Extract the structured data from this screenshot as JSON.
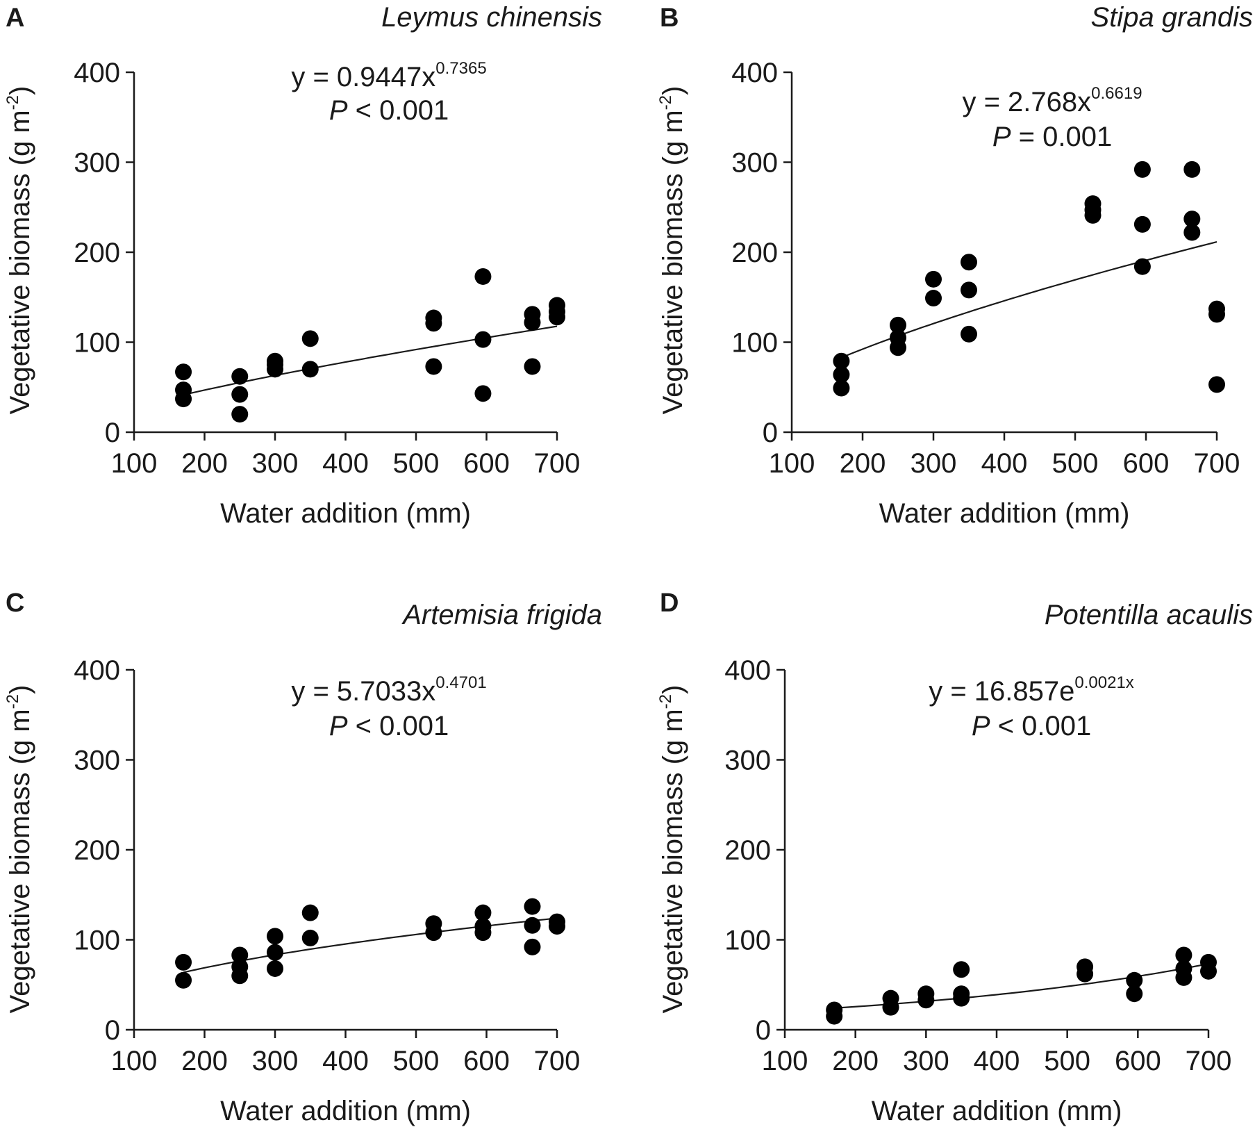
{
  "chart_data": [
    {
      "type": "scatter",
      "panel_label": "A",
      "title": "Leymus chinensis",
      "equation": {
        "prefix": "y = 0.9447x",
        "superscript": "0.7365",
        "p_symbol": "P",
        "p_text": " < 0.001"
      },
      "fit": {
        "form": "power",
        "a": 0.9447,
        "b": 0.7365
      },
      "xlabel": "Water addition (mm)",
      "ylabel": "Vegetative biomass (g m",
      "ylabel_sup": "-2",
      "ylabel_close": ")",
      "xlim": [
        100,
        700
      ],
      "ylim": [
        0,
        400
      ],
      "xticks": [
        "100",
        "200",
        "300",
        "400",
        "500",
        "600",
        "700"
      ],
      "yticks": [
        "0",
        "100",
        "200",
        "300",
        "400"
      ],
      "points": [
        [
          170,
          67
        ],
        [
          170,
          47
        ],
        [
          170,
          37
        ],
        [
          250,
          62
        ],
        [
          250,
          42
        ],
        [
          250,
          20
        ],
        [
          300,
          79
        ],
        [
          300,
          75
        ],
        [
          300,
          70
        ],
        [
          350,
          104
        ],
        [
          350,
          70
        ],
        [
          525,
          127
        ],
        [
          525,
          121
        ],
        [
          525,
          73
        ],
        [
          595,
          173
        ],
        [
          595,
          103
        ],
        [
          595,
          43
        ],
        [
          665,
          131
        ],
        [
          665,
          122
        ],
        [
          665,
          73
        ],
        [
          700,
          141
        ],
        [
          700,
          134
        ],
        [
          700,
          128
        ]
      ]
    },
    {
      "type": "scatter",
      "panel_label": "B",
      "title": "Stipa grandis",
      "equation": {
        "prefix": "y = 2.768x",
        "superscript": "0.6619",
        "p_symbol": "P",
        "p_text": " = 0.001"
      },
      "fit": {
        "form": "power",
        "a": 2.768,
        "b": 0.6619
      },
      "xlabel": "Water addition (mm)",
      "ylabel": "Vegetative biomass (g m",
      "ylabel_sup": "-2",
      "ylabel_close": ")",
      "xlim": [
        100,
        700
      ],
      "ylim": [
        0,
        400
      ],
      "xticks": [
        "100",
        "200",
        "300",
        "400",
        "500",
        "600",
        "700"
      ],
      "yticks": [
        "0",
        "100",
        "200",
        "300",
        "400"
      ],
      "points": [
        [
          170,
          79
        ],
        [
          170,
          64
        ],
        [
          170,
          49
        ],
        [
          250,
          119
        ],
        [
          250,
          105
        ],
        [
          250,
          94
        ],
        [
          300,
          170
        ],
        [
          300,
          149
        ],
        [
          350,
          189
        ],
        [
          350,
          158
        ],
        [
          350,
          109
        ],
        [
          525,
          254
        ],
        [
          525,
          247
        ],
        [
          525,
          241
        ],
        [
          595,
          292
        ],
        [
          595,
          231
        ],
        [
          595,
          184
        ],
        [
          665,
          292
        ],
        [
          665,
          237
        ],
        [
          665,
          222
        ],
        [
          700,
          137
        ],
        [
          700,
          131
        ],
        [
          700,
          53
        ]
      ]
    },
    {
      "type": "scatter",
      "panel_label": "C",
      "title": "Artemisia frigida",
      "equation": {
        "prefix": "y = 5.7033x",
        "superscript": "0.4701",
        "p_symbol": "P",
        "p_text": " < 0.001"
      },
      "fit": {
        "form": "power",
        "a": 5.7033,
        "b": 0.4701
      },
      "xlabel": "Water addition (mm)",
      "ylabel": "Vegetative biomass (g m",
      "ylabel_sup": "-2",
      "ylabel_close": ")",
      "xlim": [
        100,
        700
      ],
      "ylim": [
        0,
        400
      ],
      "xticks": [
        "100",
        "200",
        "300",
        "400",
        "500",
        "600",
        "700"
      ],
      "yticks": [
        "0",
        "100",
        "200",
        "300",
        "400"
      ],
      "points": [
        [
          170,
          75
        ],
        [
          170,
          55
        ],
        [
          250,
          83
        ],
        [
          250,
          70
        ],
        [
          250,
          60
        ],
        [
          300,
          104
        ],
        [
          300,
          86
        ],
        [
          300,
          68
        ],
        [
          350,
          130
        ],
        [
          350,
          102
        ],
        [
          525,
          118
        ],
        [
          525,
          108
        ],
        [
          595,
          130
        ],
        [
          595,
          115
        ],
        [
          595,
          108
        ],
        [
          665,
          137
        ],
        [
          665,
          116
        ],
        [
          665,
          92
        ],
        [
          700,
          120
        ],
        [
          700,
          115
        ]
      ]
    },
    {
      "type": "scatter",
      "panel_label": "D",
      "title": "Potentilla acaulis",
      "equation": {
        "prefix": "y = 16.857e",
        "superscript": "0.0021x",
        "p_symbol": "P",
        "p_text": " < 0.001"
      },
      "fit": {
        "form": "exponential",
        "a": 16.857,
        "b": 0.0021
      },
      "xlabel": "Water addition (mm)",
      "ylabel": "Vegetative biomass (g m",
      "ylabel_sup": "-2",
      "ylabel_close": ")",
      "xlim": [
        100,
        700
      ],
      "ylim": [
        0,
        400
      ],
      "xticks": [
        "100",
        "200",
        "300",
        "400",
        "500",
        "600",
        "700"
      ],
      "yticks": [
        "0",
        "100",
        "200",
        "300",
        "400"
      ],
      "points": [
        [
          170,
          22
        ],
        [
          170,
          15
        ],
        [
          250,
          35
        ],
        [
          250,
          25
        ],
        [
          300,
          40
        ],
        [
          300,
          33
        ],
        [
          350,
          67
        ],
        [
          350,
          40
        ],
        [
          350,
          35
        ],
        [
          525,
          70
        ],
        [
          525,
          62
        ],
        [
          595,
          55
        ],
        [
          595,
          40
        ],
        [
          665,
          83
        ],
        [
          665,
          68
        ],
        [
          665,
          58
        ],
        [
          700,
          75
        ],
        [
          700,
          65
        ]
      ]
    }
  ]
}
